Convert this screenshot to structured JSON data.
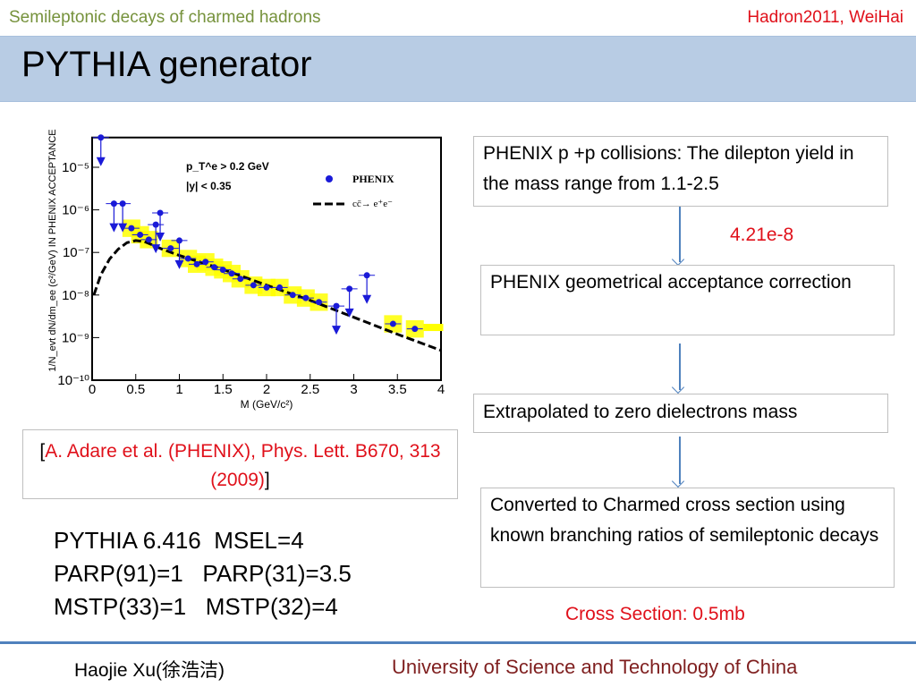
{
  "header": {
    "left": "Semileptonic decays of charmed hadrons",
    "right": "Hadron2011,   WeiHai"
  },
  "title": "PYTHIA generator",
  "flow": {
    "step1": "PHENIX p +p collisions: The dilepton yield in the mass range from 1.1-2.5",
    "value1": "4.21e-8",
    "step2": "PHENIX geometrical acceptance correction",
    "step3": "Extrapolated to zero  dielectrons mass",
    "step4": "Converted to Charmed cross section using known branching ratios of semileptonic decays",
    "result": "Cross Section: 0.5mb"
  },
  "citation": {
    "open": "[",
    "text": "A. Adare et al. (PHENIX), Phys. Lett. B670, 313 (2009)",
    "close": "]"
  },
  "params": [
    "PYTHIA 6.416  MSEL=4",
    "PARP(91)=1   PARP(31)=3.5",
    "MSTP(33)=1   MSTP(32)=4"
  ],
  "footer": {
    "author": "Haojie Xu(徐浩洁)",
    "institution": "University of Science and Technology of China"
  },
  "colors": {
    "accent": "#4f81bd",
    "title_bg": "#b8cce4",
    "red": "#e0101a",
    "data": "#1a1ad8",
    "syst": "#ffff00"
  },
  "chart_data": {
    "type": "scatter",
    "xlabel": "M (GeV/c²)",
    "ylabel": "1/N_evt dN/dm_ee (c²/GeV) IN PHENIX ACCEPTANCE",
    "xlim": [
      0,
      4
    ],
    "ylim": [
      1e-10,
      5e-05
    ],
    "yscale": "log",
    "xticks": [
      "0",
      "0.5",
      "1",
      "1.5",
      "2",
      "2.5",
      "3",
      "3.5",
      "4"
    ],
    "yticks": [
      "10⁻¹⁰",
      "10⁻⁹",
      "10⁻⁸",
      "10⁻⁷",
      "10⁻⁶",
      "10⁻⁵"
    ],
    "annotations": [
      "p_T^e > 0.2 GeV",
      "|y| < 0.35"
    ],
    "legend": {
      "placement": "top-right",
      "entries": [
        "PHENIX",
        "cc̄→ e⁺e⁻"
      ]
    },
    "series": [
      {
        "name": "PHENIX",
        "kind": "points",
        "points": [
          {
            "x": 0.1,
            "y": 5e-05,
            "upper_limit": true
          },
          {
            "x": 0.25,
            "y": 1.4e-06,
            "upper_limit": true
          },
          {
            "x": 0.35,
            "y": 1.4e-06,
            "upper_limit": true
          },
          {
            "x": 0.45,
            "y": 3.7e-07
          },
          {
            "x": 0.55,
            "y": 2.6e-07
          },
          {
            "x": 0.65,
            "y": 2e-07
          },
          {
            "x": 0.73,
            "y": 4.5e-07,
            "upper_limit": true
          },
          {
            "x": 0.78,
            "y": 8.5e-07,
            "upper_limit": true
          },
          {
            "x": 0.9,
            "y": 1.25e-07
          },
          {
            "x": 1.0,
            "y": 1.9e-07,
            "upper_limit": true
          },
          {
            "x": 1.1,
            "y": 7.2e-08
          },
          {
            "x": 1.2,
            "y": 5.3e-08
          },
          {
            "x": 1.3,
            "y": 6e-08
          },
          {
            "x": 1.4,
            "y": 4.5e-08
          },
          {
            "x": 1.5,
            "y": 3.9e-08
          },
          {
            "x": 1.6,
            "y": 3.2e-08
          },
          {
            "x": 1.7,
            "y": 2.4e-08
          },
          {
            "x": 1.85,
            "y": 1.7e-08
          },
          {
            "x": 2.0,
            "y": 1.5e-08
          },
          {
            "x": 2.15,
            "y": 1.5e-08
          },
          {
            "x": 2.3,
            "y": 1e-08
          },
          {
            "x": 2.45,
            "y": 8.5e-09
          },
          {
            "x": 2.6,
            "y": 6.8e-09
          },
          {
            "x": 2.8,
            "y": 5.5e-09,
            "upper_limit": true
          },
          {
            "x": 2.95,
            "y": 1.4e-08,
            "upper_limit": true
          },
          {
            "x": 3.15,
            "y": 2.9e-08,
            "upper_limit": true
          },
          {
            "x": 3.45,
            "y": 2.1e-09
          },
          {
            "x": 3.7,
            "y": 1.6e-09
          }
        ]
      },
      {
        "name": "cc̄→ e⁺e⁻",
        "kind": "dashed-line",
        "x": [
          0.02,
          0.1,
          0.2,
          0.3,
          0.4,
          0.5,
          0.6,
          0.8,
          1.0,
          1.5,
          2.0,
          2.5,
          3.0,
          3.5,
          4.0
        ],
        "y": [
          1e-08,
          3e-08,
          7e-08,
          1.2e-07,
          1.7e-07,
          1.9e-07,
          1.8e-07,
          1.2e-07,
          8.5e-08,
          4e-08,
          1.7e-08,
          7.5e-09,
          3e-09,
          1.2e-09,
          5e-10
        ]
      }
    ]
  }
}
